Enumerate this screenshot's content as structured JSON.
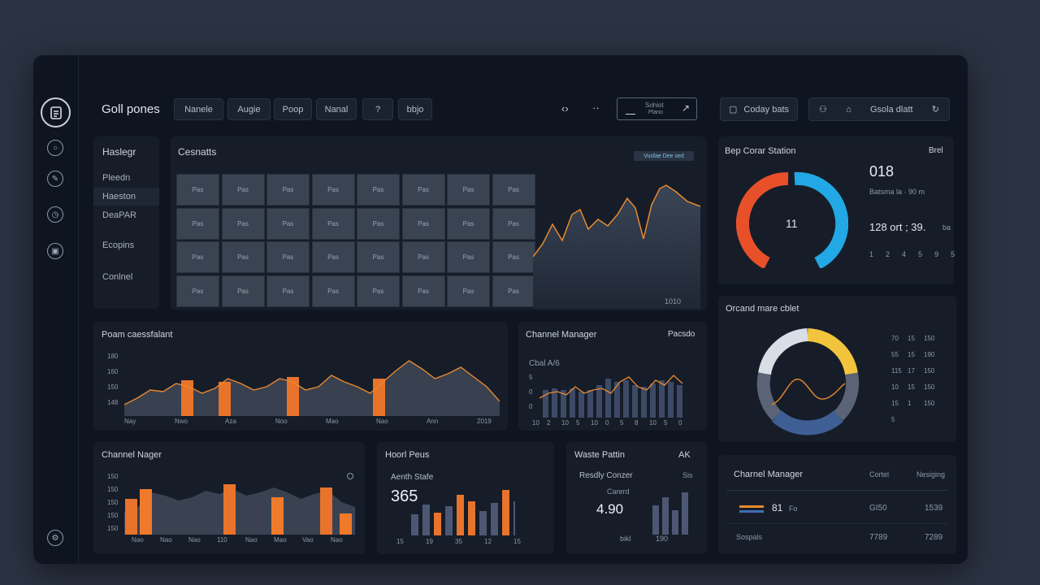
{
  "app": {
    "title": "Goll pones"
  },
  "toolbar": {
    "tabs": [
      "Nanele",
      "Augie",
      "Poop",
      "Nanal",
      "?",
      "bbjo"
    ],
    "nav_back": "‹›",
    "nav_more": "··",
    "search_top": "Sohiot",
    "search_bottom": "Plano",
    "right_btn1": "Coday bats",
    "right_btn2": "Gsola dlatt"
  },
  "sidebar": {
    "title": "Haslegr",
    "items": [
      "Pleedn",
      "Haeston",
      "DeaPAR",
      "Ecopins",
      "Conlnel"
    ]
  },
  "main_chart": {
    "title": "Cesnatts",
    "legend": "Vusfae Dee sed",
    "grid": [
      [
        "Pas",
        "Pas",
        "Pas",
        "Pas",
        "Pas",
        "Pas",
        "Pas",
        "Pas"
      ],
      [
        "Pas",
        "Pas",
        "Pas",
        "Pas",
        "Pas",
        "Pas",
        "Pas",
        "Pas"
      ],
      [
        "Pas",
        "Pas",
        "Pas",
        "Pas",
        "Pas",
        "Pas",
        "Pas",
        "Pas"
      ],
      [
        "Pas",
        "Pas",
        "Pas",
        "Pas",
        "Pas",
        "Pas",
        "Pas",
        "Pas"
      ]
    ],
    "footer": "1010"
  },
  "gauge": {
    "title": "Bep Corar Station",
    "tag": "Brel",
    "center": "11",
    "value_main": "018",
    "subtitle": "Batsma la · 90 m",
    "row": "128 ort ; 39.",
    "unit": "ba",
    "ticks": [
      "1",
      "2",
      "4",
      "5",
      "9",
      "5"
    ],
    "colors": {
      "left": "#e8502a",
      "right": "#22a8e4"
    }
  },
  "ring": {
    "title": "Orcand mare cblet",
    "rows": [
      [
        "70",
        "15",
        "150"
      ],
      [
        "55",
        "15",
        "190"
      ],
      [
        "115",
        "17",
        "150"
      ],
      [
        "10",
        "15",
        "150"
      ],
      [
        "15",
        "1",
        "150"
      ],
      [
        "5",
        "",
        ""
      ]
    ],
    "colors": {
      "a": "#f2c43d",
      "b": "#d9dee6",
      "c": "#5a6476",
      "d": "#3f5f94"
    }
  },
  "perf": {
    "title": "Poam caessfalant",
    "yticks": [
      "180",
      "160",
      "150",
      "148"
    ],
    "xticks": [
      "Nay",
      "Nwo",
      "Aza",
      "Noo",
      "Mao",
      "Nao",
      "Ann",
      "2019"
    ]
  },
  "channel1": {
    "title": "Channel Manager",
    "tag": "Pacsdo",
    "label": "Cbal A/6",
    "yticks": [
      "5",
      "0",
      "0"
    ],
    "xticks": [
      "10",
      "2",
      "10",
      "5",
      "10",
      "0",
      "5",
      "8",
      "10",
      "5",
      "0"
    ]
  },
  "channel2": {
    "title": "Channel Nager",
    "yticks": [
      "150",
      "150",
      "150",
      "150",
      "150"
    ],
    "xticks": [
      "Nao",
      "Nao",
      "Nao",
      "110",
      "Nao",
      "Mao",
      "Vao",
      "Nao"
    ]
  },
  "hoorn": {
    "title": "Hoorl Peus",
    "label": "Aenth Stafe",
    "value": "365",
    "xticks": [
      "15",
      "19",
      "35",
      "12",
      "15"
    ]
  },
  "waste": {
    "title": "Waste Pattin",
    "tag": "AK",
    "label": "Resdly Conzer",
    "sublabel": "Carerd",
    "value": "4.90",
    "side": "Sis",
    "foot": "bikl",
    "foot2": "190"
  },
  "table": {
    "title": "Charnel Manager",
    "headers": [
      "Cortel",
      "Nesiging"
    ],
    "rows": [
      {
        "name": "81",
        "unit": "Fo",
        "c1": "GI50",
        "c2": "1539"
      },
      {
        "name": "Sospals",
        "unit": "",
        "c1": "7789",
        "c2": "7289"
      }
    ]
  }
}
